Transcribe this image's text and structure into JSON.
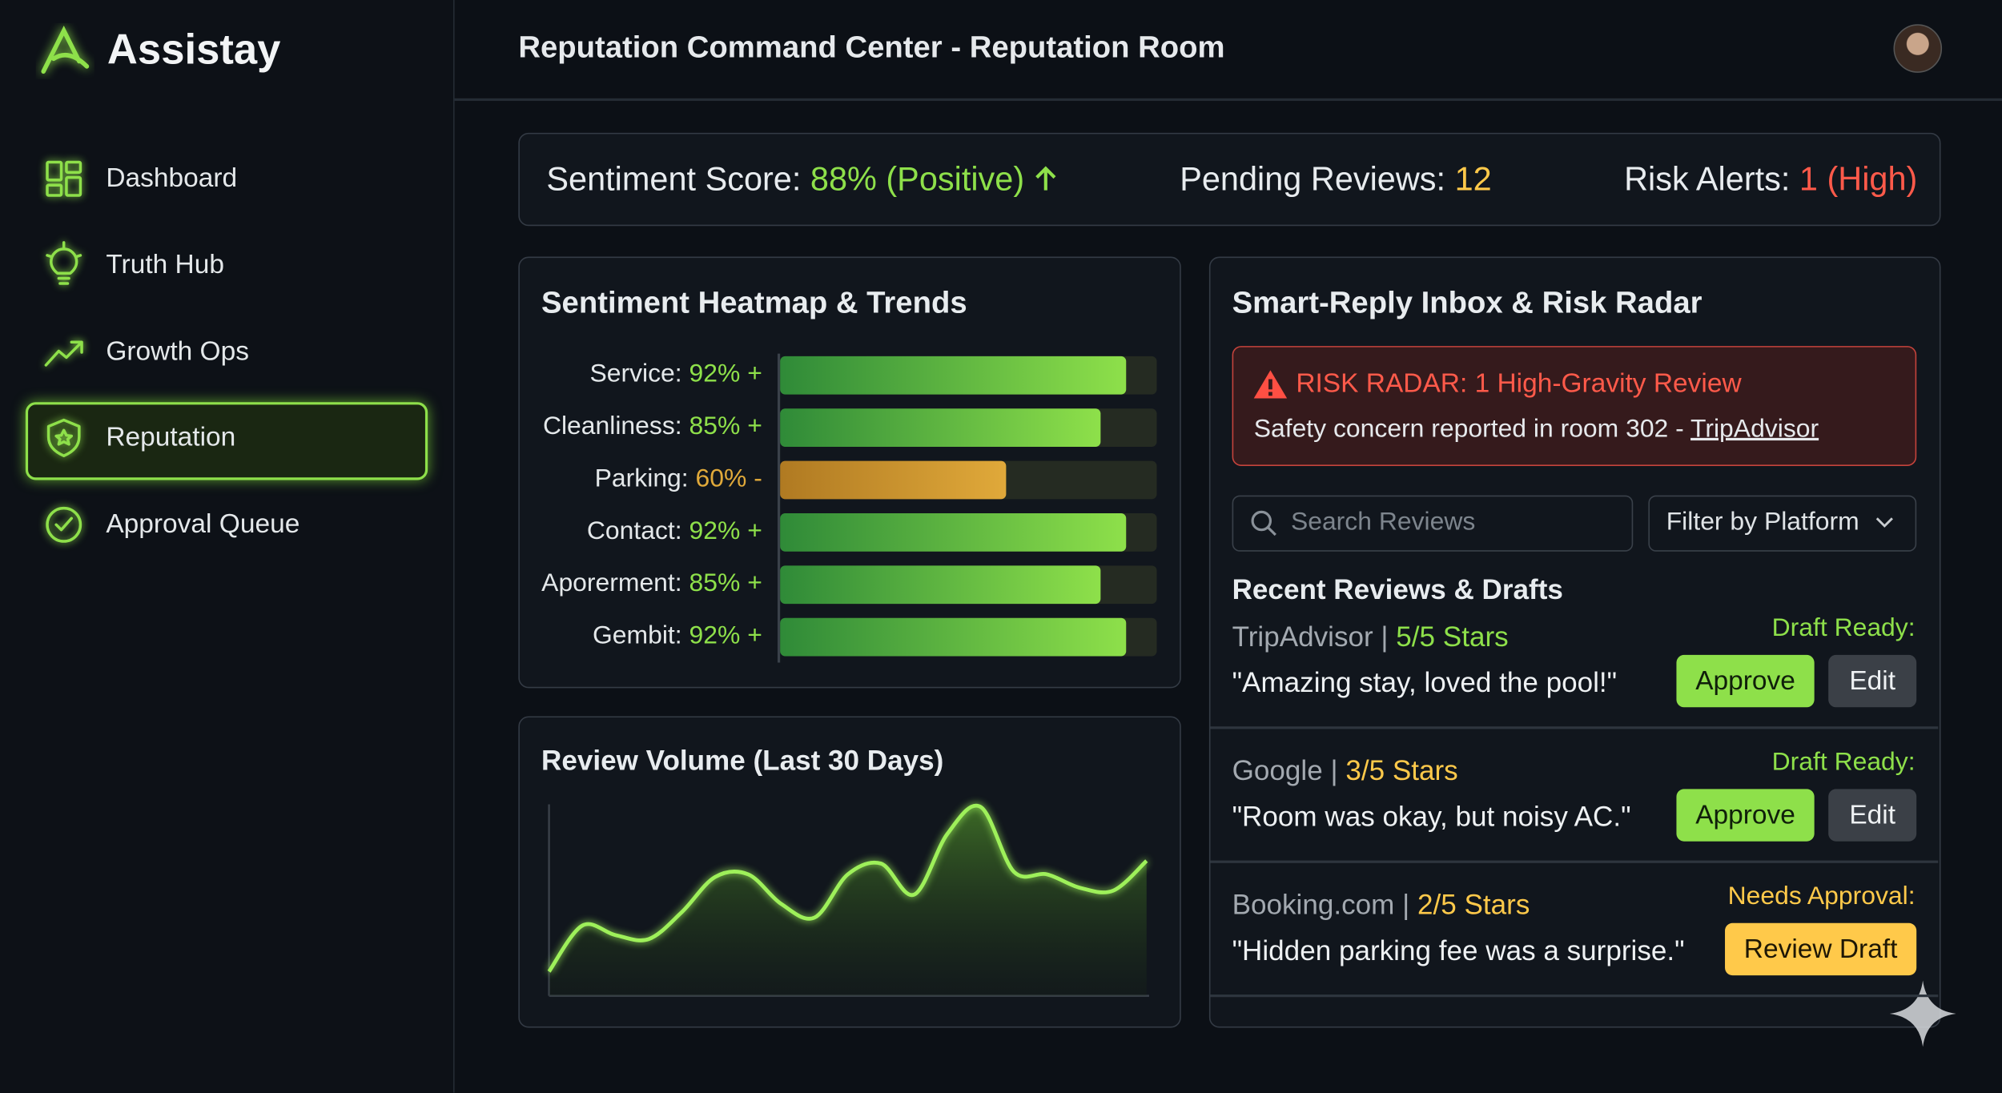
{
  "sidebar": {
    "brand": "Assistay",
    "nav": [
      "Dashboard",
      "Truth Hub",
      "Growth Ops",
      "Reputation",
      "Approval Queue"
    ]
  },
  "header": {
    "title": "Reputation Command Center - Reputation Room"
  },
  "stats": [
    {
      "label": "Sentiment Score: ",
      "value": "88% (Positive)",
      "color": "#8ee04a"
    },
    {
      "label": "Pending Reviews: ",
      "value": "12",
      "color": "#ffc94a"
    },
    {
      "label": "Risk Alerts: ",
      "value": "1 (High)",
      "color": "#ff5a4a"
    }
  ],
  "heatmap": {
    "title": "Sentiment Heatmap & Trends",
    "xlim": [
      0,
      100
    ],
    "rows": [
      {
        "label": "Service:",
        "value": 92,
        "value_label": "92%",
        "trend": "+",
        "color": "#8ee04a"
      },
      {
        "label": "Cleanliness:",
        "value": 85,
        "value_label": "85%",
        "trend": "+",
        "color": "#8ee04a"
      },
      {
        "label": "Parking:",
        "value": 60,
        "value_label": "60%",
        "trend": "-",
        "color": "#e0a93a"
      },
      {
        "label": "Contact:",
        "value": 92,
        "value_label": "92%",
        "trend": "+",
        "color": "#8ee04a"
      },
      {
        "label": "Aporerment:",
        "value": 85,
        "value_label": "85%",
        "trend": "+",
        "color": "#8ee04a"
      },
      {
        "label": "Gembit:",
        "value": 92,
        "value_label": "92%",
        "trend": "+",
        "color": "#8ee04a"
      }
    ]
  },
  "review_volume": {
    "title": "Review Volume (Last 30 Days)",
    "color": "#9ef05a",
    "values": [
      18,
      52,
      45,
      42,
      62,
      88,
      90,
      68,
      58,
      90,
      98,
      75,
      120,
      140,
      92,
      90,
      80,
      78,
      100
    ]
  },
  "inbox": {
    "title": "Smart-Reply Inbox & Risk Radar",
    "risk": {
      "title": "RISK RADAR: 1 High-Gravity Review",
      "message": "Safety concern reported in room 302 - ",
      "link": "TripAdvisor"
    },
    "search_placeholder": "Search Reviews",
    "filter_label": "Filter by Platform",
    "reviews_heading": "Recent Reviews & Drafts",
    "reviews": [
      {
        "platform": "TripAdvisor",
        "stars": "5/5 Stars",
        "stars_color": "#8ee04a",
        "quote": "\"Amazing stay, loved the pool!\"",
        "status": "Draft Ready:",
        "status_color": "#8ee04a",
        "buttons": [
          "Approve",
          "Edit"
        ]
      },
      {
        "platform": "Google",
        "stars": "3/5 Stars",
        "stars_color": "#ffc94a",
        "quote": "\"Room was okay, but noisy AC.\"",
        "status": "Draft Ready:",
        "status_color": "#8ee04a",
        "buttons": [
          "Approve",
          "Edit"
        ]
      },
      {
        "platform": "Booking.com",
        "stars": "2/5 Stars",
        "stars_color": "#ffc94a",
        "quote": "\"Hidden parking fee was a surprise.\"",
        "status": "Needs Approval:",
        "status_color": "#ffc94a",
        "buttons": [
          "Review Draft"
        ]
      }
    ]
  }
}
